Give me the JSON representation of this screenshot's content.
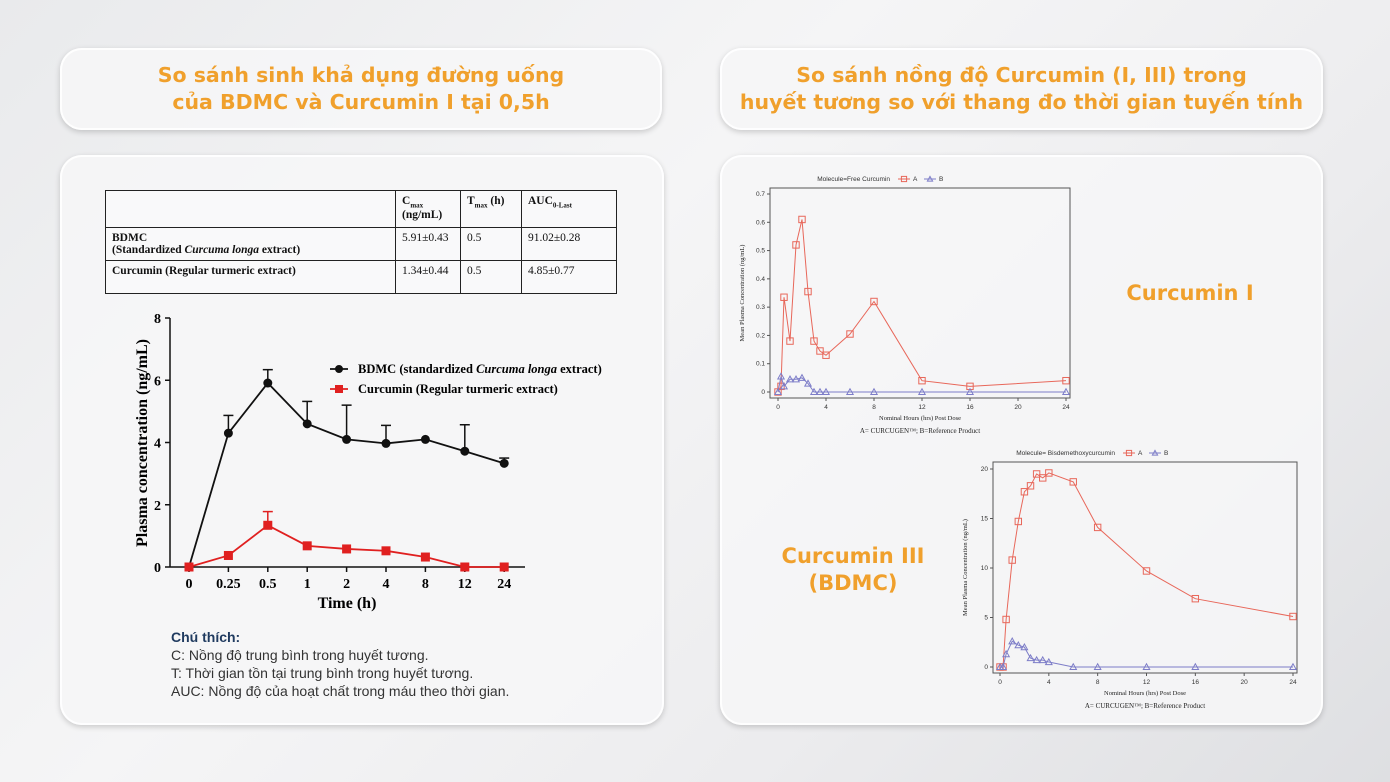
{
  "left_panel": {
    "title_line1": "So sánh sinh khả dụng đường uống",
    "title_line2": "của BDMC và Curcumin I tại 0,5h",
    "table": {
      "headers": [
        {
          "main": "",
          "sub": "",
          "unit": ""
        },
        {
          "main": "C",
          "sub": "max",
          "unit": "(ng/mL)"
        },
        {
          "main": "T",
          "sub": "max",
          "unit": " (h)"
        },
        {
          "main": "AUC",
          "sub": "0-Last",
          "unit": ""
        }
      ],
      "rows": [
        {
          "name": "BDMC",
          "desc_pre": "(Standardized ",
          "desc_italic": "Curcuma longa",
          "desc_post": " extract)",
          "cmax": "5.91±0.43",
          "tmax": "0.5",
          "auc": "91.02±0.28"
        },
        {
          "name": "Curcumin (Regular turmeric extract)",
          "desc_pre": "",
          "desc_italic": "",
          "desc_post": "",
          "cmax": "1.34±0.44",
          "tmax": "0.5",
          "auc": "4.85±0.77"
        }
      ]
    },
    "notes": {
      "heading": "Chú thích:",
      "lines": [
        "C: Nồng độ trung bình trong huyết tương.",
        "T: Thời gian tồn tại trung bình trong huyết tương.",
        "AUC: Nồng độ của hoạt chất trong máu theo thời gian."
      ]
    }
  },
  "right_panel": {
    "title_line1": "So sánh nồng độ Curcumin (I, III) trong",
    "title_line2": "huyết tương so với thang đo thời gian tuyến tính",
    "label_curcumin1": "Curcumin I",
    "label_curcumin3_line1": "Curcumin III",
    "label_curcumin3_line2": "(BDMC)"
  },
  "colors": {
    "accent": "#f0a02c",
    "black_series": "#111111",
    "red_series": "#e02020",
    "series_a": "#e8675a",
    "series_b": "#7d7dc8"
  },
  "chart_data": [
    {
      "type": "line",
      "xlabel": "Time (h)",
      "ylabel": "Plasma concentration (ng/mL)",
      "categories": [
        "0",
        "0.25",
        "0.5",
        "1",
        "2",
        "4",
        "8",
        "12",
        "24"
      ],
      "ylim": [
        0,
        8
      ],
      "yticks": [
        0,
        2,
        4,
        6,
        8
      ],
      "grid": false,
      "legend_placement": "top-right",
      "series": [
        {
          "name_pre": "BDMC (standardized ",
          "name_italic": "Curcuma longa",
          "name_post": " extract)",
          "marker": "circle",
          "values": [
            0,
            4.3,
            5.91,
            4.6,
            4.1,
            3.97,
            4.1,
            3.72,
            3.33
          ],
          "error_upper": [
            0,
            0.57,
            0.43,
            0.72,
            1.1,
            0.58,
            0,
            0.85,
            0.17
          ]
        },
        {
          "name_pre": "Curcumin (Regular turmeric extract)",
          "name_italic": "",
          "name_post": "",
          "marker": "square",
          "values": [
            0,
            0.37,
            1.34,
            0.68,
            0.58,
            0.52,
            0.32,
            0,
            0
          ],
          "error_upper": [
            0,
            0,
            0.44,
            0,
            0,
            0,
            0,
            0,
            0
          ]
        }
      ]
    },
    {
      "type": "line",
      "title": "Molecule=Free Curcumin",
      "xlabel": "Nominal Hours (hrs) Post Dose",
      "ylabel": "Mean Plasma Concentration (ng/mL)",
      "caption": "A= CURCUGEN™; B=Reference Product",
      "xlim": [
        0,
        24
      ],
      "xticks": [
        0,
        4,
        8,
        12,
        16,
        20,
        24
      ],
      "ylim": [
        0,
        0.7
      ],
      "yticks": [
        0,
        0.1,
        0.2,
        0.3,
        0.4,
        0.5,
        0.6,
        0.7
      ],
      "legend_placement": "top",
      "x": [
        0,
        0.25,
        0.5,
        1,
        1.5,
        2,
        2.5,
        3,
        3.5,
        4,
        6,
        8,
        12,
        16,
        24
      ],
      "series": [
        {
          "name": "A",
          "marker": "square",
          "values": [
            0,
            0.02,
            0.335,
            0.18,
            0.52,
            0.61,
            0.355,
            0.18,
            0.145,
            0.13,
            0.205,
            0.32,
            0.04,
            0.02,
            0.04
          ]
        },
        {
          "name": "B",
          "marker": "triangle",
          "values": [
            0,
            0.055,
            0.02,
            0.045,
            0.045,
            0.05,
            0.03,
            0,
            0,
            0,
            0,
            0,
            0,
            0,
            0
          ]
        }
      ]
    },
    {
      "type": "line",
      "title": "Molecule= Bisdemethoxycurcumin",
      "xlabel": "Nominal Hours (hrs) Post Dose",
      "ylabel": "Mean Plasma Concentration (ng/mL)",
      "caption": "A= CURCUGEN™; B=Reference Product",
      "xlim": [
        0,
        24
      ],
      "xticks": [
        0,
        4,
        8,
        12,
        16,
        20,
        24
      ],
      "ylim": [
        0,
        20
      ],
      "yticks": [
        0,
        5,
        10,
        15,
        20
      ],
      "legend_placement": "top",
      "x": [
        0,
        0.25,
        0.5,
        1,
        1.5,
        2,
        2.5,
        3,
        3.5,
        4,
        6,
        8,
        12,
        16,
        24
      ],
      "series": [
        {
          "name": "A",
          "marker": "square",
          "values": [
            0,
            0,
            4.8,
            10.8,
            14.7,
            17.7,
            18.3,
            19.5,
            19.1,
            19.6,
            18.7,
            14.1,
            9.7,
            6.9,
            5.1
          ]
        },
        {
          "name": "B",
          "marker": "triangle",
          "values": [
            0,
            0,
            1.3,
            2.6,
            2.2,
            2.0,
            0.9,
            0.7,
            0.7,
            0.5,
            0,
            0,
            0,
            0,
            0
          ]
        }
      ]
    }
  ]
}
